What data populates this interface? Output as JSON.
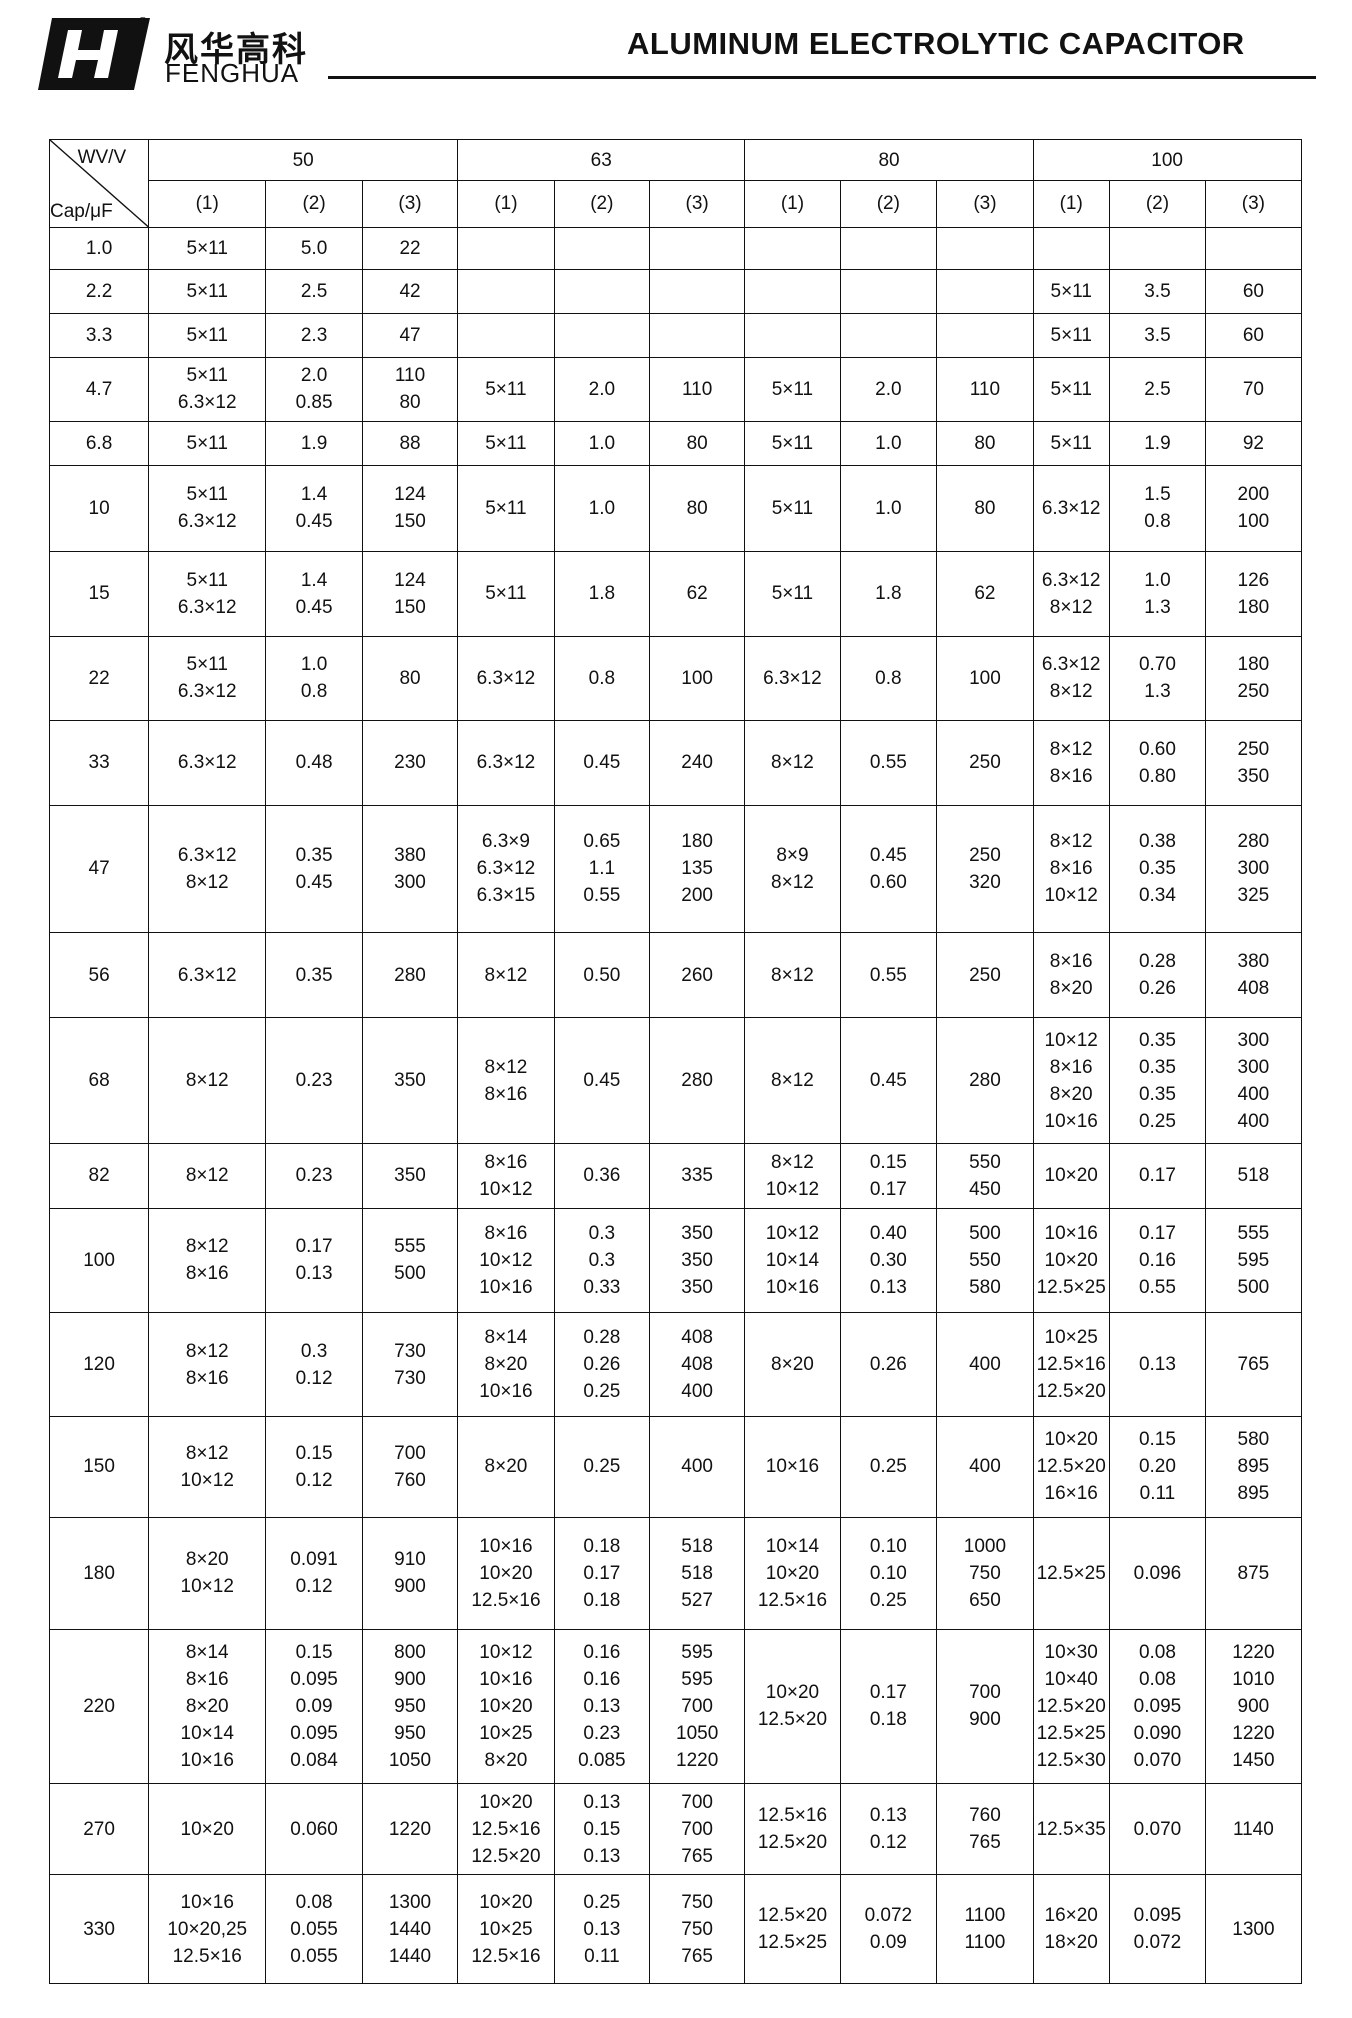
{
  "header": {
    "brand_cn": "风华高科",
    "brand_en": "FENGHUA",
    "registered": "®",
    "title": "ALUMINUM ELECTROLYTIC CAPACITOR"
  },
  "table": {
    "corner_top": "WV/V",
    "corner_bottom": "Cap/μF",
    "voltages": [
      "50",
      "63",
      "80",
      "100"
    ],
    "columns": [
      "(1)",
      "(2)",
      "(3)"
    ],
    "rows": [
      {
        "cap": "1.0",
        "cells": [
          [
            "5×11"
          ],
          [
            "5.0"
          ],
          [
            "22"
          ],
          [],
          [],
          [],
          [],
          [],
          [],
          [],
          [],
          []
        ]
      },
      {
        "cap": "2.2",
        "cells": [
          [
            "5×11"
          ],
          [
            "2.5"
          ],
          [
            "42"
          ],
          [],
          [],
          [],
          [],
          [],
          [],
          [
            "5×11"
          ],
          [
            "3.5"
          ],
          [
            "60"
          ]
        ]
      },
      {
        "cap": "3.3",
        "cells": [
          [
            "5×11"
          ],
          [
            "2.3"
          ],
          [
            "47"
          ],
          [],
          [],
          [],
          [],
          [],
          [],
          [
            "5×11"
          ],
          [
            "3.5"
          ],
          [
            "60"
          ]
        ]
      },
      {
        "cap": "4.7",
        "cells": [
          [
            "5×11",
            "6.3×12"
          ],
          [
            "2.0",
            "0.85"
          ],
          [
            "110",
            "80"
          ],
          [
            "5×11"
          ],
          [
            "2.0"
          ],
          [
            "110"
          ],
          [
            "5×11"
          ],
          [
            "2.0"
          ],
          [
            "110"
          ],
          [
            "5×11"
          ],
          [
            "2.5"
          ],
          [
            "70"
          ]
        ]
      },
      {
        "cap": "6.8",
        "cells": [
          [
            "5×11"
          ],
          [
            "1.9"
          ],
          [
            "88"
          ],
          [
            "5×11"
          ],
          [
            "1.0"
          ],
          [
            "80"
          ],
          [
            "5×11"
          ],
          [
            "1.0"
          ],
          [
            "80"
          ],
          [
            "5×11"
          ],
          [
            "1.9"
          ],
          [
            "92"
          ]
        ]
      },
      {
        "cap": "10",
        "cells": [
          [
            "5×11",
            "6.3×12"
          ],
          [
            "1.4",
            "0.45"
          ],
          [
            "124",
            "150"
          ],
          [
            "5×11"
          ],
          [
            "1.0"
          ],
          [
            "80"
          ],
          [
            "5×11"
          ],
          [
            "1.0"
          ],
          [
            "80"
          ],
          [
            "6.3×12"
          ],
          [
            "1.5",
            "0.8"
          ],
          [
            "200",
            "100"
          ]
        ]
      },
      {
        "cap": "15",
        "cells": [
          [
            "5×11",
            "6.3×12"
          ],
          [
            "1.4",
            "0.45"
          ],
          [
            "124",
            "150"
          ],
          [
            "5×11"
          ],
          [
            "1.8"
          ],
          [
            "62"
          ],
          [
            "5×11"
          ],
          [
            "1.8"
          ],
          [
            "62"
          ],
          [
            "6.3×12",
            "8×12"
          ],
          [
            "1.0",
            "1.3"
          ],
          [
            "126",
            "180"
          ]
        ]
      },
      {
        "cap": "22",
        "cells": [
          [
            "5×11",
            "6.3×12"
          ],
          [
            "1.0",
            "0.8"
          ],
          [
            "80"
          ],
          [
            "6.3×12"
          ],
          [
            "0.8"
          ],
          [
            "100"
          ],
          [
            "6.3×12"
          ],
          [
            "0.8"
          ],
          [
            "100"
          ],
          [
            "6.3×12",
            "8×12"
          ],
          [
            "0.70",
            "1.3"
          ],
          [
            "180",
            "250"
          ]
        ]
      },
      {
        "cap": "33",
        "cells": [
          [
            "6.3×12"
          ],
          [
            "0.48"
          ],
          [
            "230"
          ],
          [
            "6.3×12"
          ],
          [
            "0.45"
          ],
          [
            "240"
          ],
          [
            "8×12"
          ],
          [
            "0.55"
          ],
          [
            "250"
          ],
          [
            "8×12",
            "8×16"
          ],
          [
            "0.60",
            "0.80"
          ],
          [
            "250",
            "350"
          ]
        ]
      },
      {
        "cap": "47",
        "cells": [
          [
            "6.3×12",
            "8×12"
          ],
          [
            "0.35",
            "0.45"
          ],
          [
            "380",
            "300"
          ],
          [
            "6.3×9",
            "6.3×12",
            "6.3×15"
          ],
          [
            "0.65",
            "1.1",
            "0.55"
          ],
          [
            "180",
            "135",
            "200"
          ],
          [
            "8×9",
            "8×12"
          ],
          [
            "0.45",
            "0.60"
          ],
          [
            "250",
            "320"
          ],
          [
            "8×12",
            "8×16",
            "10×12"
          ],
          [
            "0.38",
            "0.35",
            "0.34"
          ],
          [
            "280",
            "300",
            "325"
          ]
        ]
      },
      {
        "cap": "56",
        "cells": [
          [
            "6.3×12"
          ],
          [
            "0.35"
          ],
          [
            "280"
          ],
          [
            "8×12"
          ],
          [
            "0.50"
          ],
          [
            "260"
          ],
          [
            "8×12"
          ],
          [
            "0.55"
          ],
          [
            "250"
          ],
          [
            "8×16",
            "8×20"
          ],
          [
            "0.28",
            "0.26"
          ],
          [
            "380",
            "408"
          ]
        ]
      },
      {
        "cap": "68",
        "cells": [
          [
            "8×12"
          ],
          [
            "0.23"
          ],
          [
            "350"
          ],
          [
            "8×12",
            "8×16"
          ],
          [
            "0.45"
          ],
          [
            "280"
          ],
          [
            "8×12"
          ],
          [
            "0.45"
          ],
          [
            "280"
          ],
          [
            "10×12",
            "8×16",
            "8×20",
            "10×16"
          ],
          [
            "0.35",
            "0.35",
            "0.35",
            "0.25"
          ],
          [
            "300",
            "300",
            "400",
            "400"
          ]
        ]
      },
      {
        "cap": "82",
        "cells": [
          [
            "8×12"
          ],
          [
            "0.23"
          ],
          [
            "350"
          ],
          [
            "8×16",
            "10×12"
          ],
          [
            "0.36"
          ],
          [
            "335"
          ],
          [
            "8×12",
            "10×12"
          ],
          [
            "0.15",
            "0.17"
          ],
          [
            "550",
            "450"
          ],
          [
            "10×20"
          ],
          [
            "0.17"
          ],
          [
            "518"
          ]
        ]
      },
      {
        "cap": "100",
        "cells": [
          [
            "8×12",
            "8×16"
          ],
          [
            "0.17",
            "0.13"
          ],
          [
            "555",
            "500"
          ],
          [
            "8×16",
            "10×12",
            "10×16"
          ],
          [
            "0.3",
            "0.3",
            "0.33"
          ],
          [
            "350",
            "350",
            "350"
          ],
          [
            "10×12",
            "10×14",
            "10×16"
          ],
          [
            "0.40",
            "0.30",
            "0.13"
          ],
          [
            "500",
            "550",
            "580"
          ],
          [
            "10×16",
            "10×20",
            "12.5×25"
          ],
          [
            "0.17",
            "0.16",
            "0.55"
          ],
          [
            "555",
            "595",
            "500"
          ]
        ]
      },
      {
        "cap": "120",
        "cells": [
          [
            "8×12",
            "8×16"
          ],
          [
            "0.3",
            "0.12"
          ],
          [
            "730",
            "730"
          ],
          [
            "8×14",
            "8×20",
            "10×16"
          ],
          [
            "0.28",
            "0.26",
            "0.25"
          ],
          [
            "408",
            "408",
            "400"
          ],
          [
            "8×20"
          ],
          [
            "0.26"
          ],
          [
            "400"
          ],
          [
            "10×25",
            "12.5×16",
            "12.5×20"
          ],
          [
            "0.13"
          ],
          [
            "765"
          ]
        ]
      },
      {
        "cap": "150",
        "cells": [
          [
            "8×12",
            "10×12"
          ],
          [
            "0.15",
            "0.12"
          ],
          [
            "700",
            "760"
          ],
          [
            "8×20"
          ],
          [
            "0.25"
          ],
          [
            "400"
          ],
          [
            "10×16"
          ],
          [
            "0.25"
          ],
          [
            "400"
          ],
          [
            "10×20",
            "12.5×20",
            "16×16"
          ],
          [
            "0.15",
            "0.20",
            "0.11"
          ],
          [
            "580",
            "895",
            "895"
          ]
        ]
      },
      {
        "cap": "180",
        "cells": [
          [
            "8×20",
            "10×12"
          ],
          [
            "0.091",
            "0.12"
          ],
          [
            "910",
            "900"
          ],
          [
            "10×16",
            "10×20",
            "12.5×16"
          ],
          [
            "0.18",
            "0.17",
            "0.18"
          ],
          [
            "518",
            "518",
            "527"
          ],
          [
            "10×14",
            "10×20",
            "12.5×16"
          ],
          [
            "0.10",
            "0.10",
            "0.25"
          ],
          [
            "1000",
            "750",
            "650"
          ],
          [
            "12.5×25"
          ],
          [
            "0.096"
          ],
          [
            "875"
          ]
        ]
      },
      {
        "cap": "220",
        "cells": [
          [
            "8×14",
            "8×16",
            "8×20",
            "10×14",
            "10×16"
          ],
          [
            "0.15",
            "0.095",
            "0.09",
            "0.095",
            "0.084"
          ],
          [
            "800",
            "900",
            "950",
            "950",
            "1050"
          ],
          [
            "10×12",
            "10×16",
            "10×20",
            "10×25",
            "8×20"
          ],
          [
            "0.16",
            "0.16",
            "0.13",
            "0.23",
            "0.085"
          ],
          [
            "595",
            "595",
            "700",
            "1050",
            "1220"
          ],
          [
            "10×20",
            "12.5×20"
          ],
          [
            "0.17",
            "0.18"
          ],
          [
            "700",
            "900"
          ],
          [
            "10×30",
            "10×40",
            "12.5×20",
            "12.5×25",
            "12.5×30"
          ],
          [
            "0.08",
            "0.08",
            "0.095",
            "0.090",
            "0.070"
          ],
          [
            "1220",
            "1010",
            "900",
            "1220",
            "1450"
          ]
        ]
      },
      {
        "cap": "270",
        "cells": [
          [
            "10×20"
          ],
          [
            "0.060"
          ],
          [
            "1220"
          ],
          [
            "10×20",
            "12.5×16",
            "12.5×20"
          ],
          [
            "0.13",
            "0.15",
            "0.13"
          ],
          [
            "700",
            "700",
            "765"
          ],
          [
            "12.5×16",
            "12.5×20"
          ],
          [
            "0.13",
            "0.12"
          ],
          [
            "760",
            "765"
          ],
          [
            "12.5×35"
          ],
          [
            "0.070"
          ],
          [
            "1140"
          ]
        ]
      },
      {
        "cap": "330",
        "cells": [
          [
            "10×16",
            "10×20,25",
            "12.5×16"
          ],
          [
            "0.08",
            "0.055",
            "0.055"
          ],
          [
            "1300",
            "1440",
            "1440"
          ],
          [
            "10×20",
            "10×25",
            "12.5×16"
          ],
          [
            "0.25",
            "0.13",
            "0.11"
          ],
          [
            "750",
            "750",
            "765"
          ],
          [
            "12.5×20",
            "12.5×25"
          ],
          [
            "0.072",
            "0.09"
          ],
          [
            "1100",
            "1100"
          ],
          [
            "16×20",
            "18×20"
          ],
          [
            "0.095",
            "0.072"
          ],
          [
            "1300"
          ]
        ]
      }
    ]
  }
}
